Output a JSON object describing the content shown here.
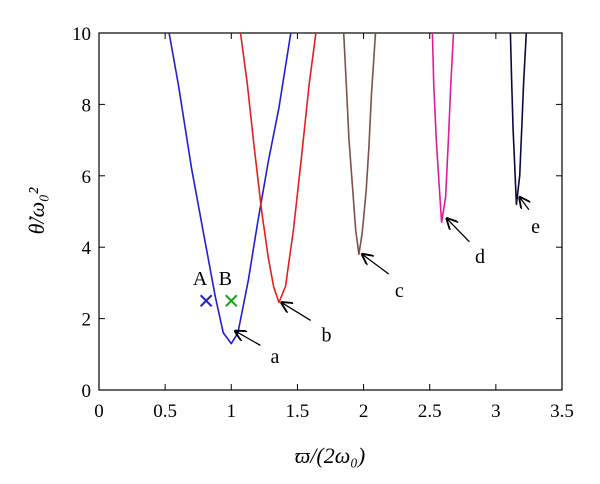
{
  "chart_data": {
    "type": "line",
    "xlabel": "ϖ/(2ω₀)",
    "ylabel": "θ̇/ω₀²",
    "xlim": [
      0,
      3.5
    ],
    "ylim": [
      0,
      10
    ],
    "x_ticks": [
      "0",
      "0.5",
      "1",
      "1.5",
      "2",
      "2.5",
      "3",
      "3.5"
    ],
    "y_ticks": [
      "0",
      "2",
      "4",
      "6",
      "8",
      "10"
    ],
    "grid": false,
    "legend": "none",
    "series": [
      {
        "label": "a",
        "color": "#1f1fd6",
        "points": [
          [
            0.53,
            10
          ],
          [
            0.6,
            8.55
          ],
          [
            0.7,
            6.2
          ],
          [
            0.8,
            4.2
          ],
          [
            0.88,
            2.6
          ],
          [
            0.94,
            1.6
          ],
          [
            1.0,
            1.3
          ],
          [
            1.05,
            1.6
          ],
          [
            1.13,
            3.1
          ],
          [
            1.2,
            4.7
          ],
          [
            1.28,
            6.4
          ],
          [
            1.36,
            7.9
          ],
          [
            1.45,
            10
          ]
        ],
        "arrow_tip": [
          1.03,
          1.65
        ],
        "arrow_tail": [
          1.22,
          1.25
        ],
        "label_pos": [
          1.33,
          0.95
        ]
      },
      {
        "label": "b",
        "color": "#e81d1d",
        "points": [
          [
            1.07,
            10
          ],
          [
            1.12,
            8.6
          ],
          [
            1.17,
            6.9
          ],
          [
            1.23,
            5.0
          ],
          [
            1.28,
            3.7
          ],
          [
            1.32,
            2.9
          ],
          [
            1.36,
            2.45
          ],
          [
            1.41,
            2.9
          ],
          [
            1.47,
            4.5
          ],
          [
            1.53,
            6.5
          ],
          [
            1.59,
            8.6
          ],
          [
            1.64,
            10
          ]
        ],
        "arrow_tip": [
          1.38,
          2.45
        ],
        "arrow_tail": [
          1.6,
          1.95
        ],
        "label_pos": [
          1.72,
          1.55
        ]
      },
      {
        "label": "c",
        "color": "#7d5048",
        "points": [
          [
            1.85,
            10
          ],
          [
            1.87,
            8.5
          ],
          [
            1.89,
            7.0
          ],
          [
            1.92,
            5.5
          ],
          [
            1.94,
            4.5
          ],
          [
            1.965,
            3.8
          ],
          [
            1.99,
            4.4
          ],
          [
            2.02,
            5.6
          ],
          [
            2.04,
            6.8
          ],
          [
            2.06,
            8.3
          ],
          [
            2.09,
            10
          ]
        ],
        "arrow_tip": [
          1.99,
          3.8
        ],
        "arrow_tail": [
          2.19,
          3.25
        ],
        "label_pos": [
          2.27,
          2.8
        ]
      },
      {
        "label": "d",
        "color": "#e01a9c",
        "points": [
          [
            2.52,
            10
          ],
          [
            2.53,
            8.6
          ],
          [
            2.55,
            7.0
          ],
          [
            2.57,
            5.8
          ],
          [
            2.59,
            4.7
          ],
          [
            2.62,
            5.4
          ],
          [
            2.64,
            6.9
          ],
          [
            2.66,
            8.6
          ],
          [
            2.68,
            10
          ]
        ],
        "arrow_tip": [
          2.63,
          4.8
        ],
        "arrow_tail": [
          2.8,
          4.15
        ],
        "label_pos": [
          2.88,
          3.75
        ]
      },
      {
        "label": "e",
        "color": "#0a0a3c",
        "points": [
          [
            3.11,
            10
          ],
          [
            3.12,
            8.6
          ],
          [
            3.13,
            7.3
          ],
          [
            3.145,
            6.1
          ],
          [
            3.155,
            5.2
          ],
          [
            3.18,
            6.0
          ],
          [
            3.195,
            7.3
          ],
          [
            3.21,
            8.6
          ],
          [
            3.23,
            10
          ]
        ],
        "arrow_tip": [
          3.18,
          5.4
        ],
        "arrow_tail": [
          3.25,
          5.05
        ],
        "label_pos": [
          3.3,
          4.6
        ]
      }
    ],
    "markers": [
      {
        "label": "A",
        "x": 0.81,
        "y": 2.5,
        "color": "#1f1fd6"
      },
      {
        "label": "B",
        "x": 1.0,
        "y": 2.5,
        "color": "#20a020"
      }
    ]
  }
}
